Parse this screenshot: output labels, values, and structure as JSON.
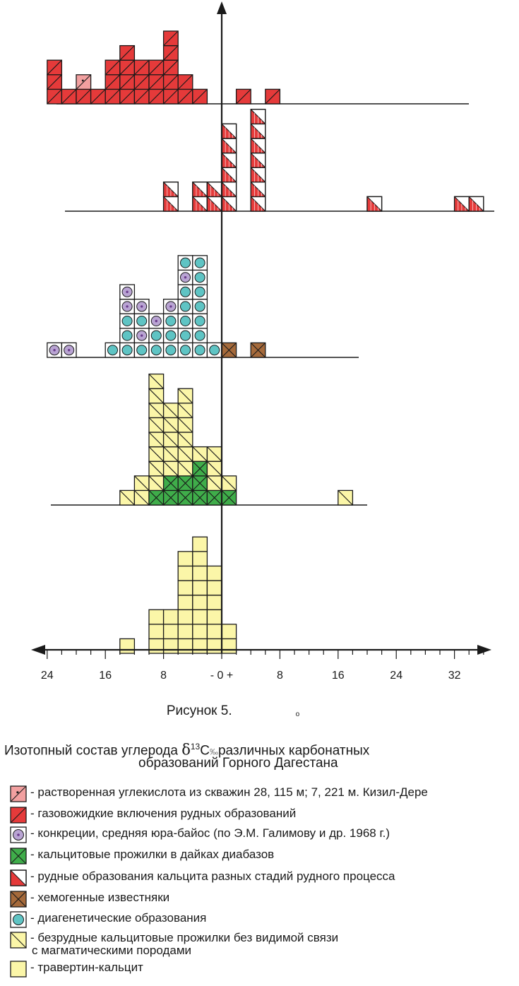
{
  "chart_data": {
    "type": "histogram",
    "x_axis": {
      "min": -24,
      "max": 36,
      "bin_width": 2,
      "ticks": [
        "24",
        "16",
        "8",
        "- 0 +",
        "8",
        "16",
        "24",
        "32"
      ],
      "arrows": "both"
    },
    "rows": [
      {
        "name": "row-1-gas-liquid-and-dissolved",
        "stacks": [
          {
            "x": -23,
            "cells": [
              "gas",
              "gas",
              "gas"
            ]
          },
          {
            "x": -21,
            "cells": [
              "gas"
            ]
          },
          {
            "x": -19,
            "cells": [
              "gas",
              "dissolved"
            ]
          },
          {
            "x": -17,
            "cells": [
              "gas"
            ]
          },
          {
            "x": -15,
            "cells": [
              "gas",
              "gas",
              "gas"
            ]
          },
          {
            "x": -13,
            "cells": [
              "gas",
              "gas",
              "gas",
              "gas"
            ]
          },
          {
            "x": -11,
            "cells": [
              "gas",
              "gas",
              "gas"
            ]
          },
          {
            "x": -9,
            "cells": [
              "gas",
              "gas",
              "gas"
            ]
          },
          {
            "x": -7,
            "cells": [
              "gas",
              "gas",
              "gas",
              "gas",
              "gas"
            ]
          },
          {
            "x": -5,
            "cells": [
              "gas",
              "gas"
            ]
          },
          {
            "x": -3,
            "cells": [
              "gas"
            ]
          },
          {
            "x": 3,
            "cells": [
              "gas"
            ]
          },
          {
            "x": 7,
            "cells": [
              "gas"
            ]
          }
        ]
      },
      {
        "name": "row-2-ore-calcite",
        "stacks": [
          {
            "x": -7,
            "cells": [
              "ore",
              "ore"
            ]
          },
          {
            "x": -3,
            "cells": [
              "ore",
              "ore"
            ]
          },
          {
            "x": -1,
            "cells": [
              "ore",
              "ore"
            ]
          },
          {
            "x": 1,
            "cells": [
              "ore",
              "ore",
              "ore",
              "ore",
              "ore",
              "ore"
            ]
          },
          {
            "x": 5,
            "cells": [
              "ore",
              "ore",
              "ore",
              "ore",
              "ore",
              "ore",
              "ore"
            ]
          },
          {
            "x": 21,
            "cells": [
              "ore"
            ]
          },
          {
            "x": 33,
            "cells": [
              "ore"
            ]
          },
          {
            "x": 35,
            "cells": [
              "ore"
            ]
          }
        ]
      },
      {
        "name": "row-3-concretions-diagenetic-chemogenic",
        "stacks": [
          {
            "x": -23,
            "cells": [
              "concretion"
            ]
          },
          {
            "x": -21,
            "cells": [
              "concretion"
            ]
          },
          {
            "x": -15,
            "cells": [
              "diagenetic"
            ]
          },
          {
            "x": -13,
            "cells": [
              "diagenetic",
              "diagenetic",
              "diagenetic",
              "concretion",
              "concretion"
            ]
          },
          {
            "x": -11,
            "cells": [
              "diagenetic",
              "concretion",
              "diagenetic",
              "concretion"
            ]
          },
          {
            "x": -9,
            "cells": [
              "diagenetic",
              "diagenetic",
              "concretion"
            ]
          },
          {
            "x": -7,
            "cells": [
              "diagenetic",
              "diagenetic",
              "diagenetic",
              "concretion"
            ]
          },
          {
            "x": -5,
            "cells": [
              "diagenetic",
              "diagenetic",
              "diagenetic",
              "diagenetic",
              "diagenetic",
              "concretion",
              "diagenetic"
            ]
          },
          {
            "x": -3,
            "cells": [
              "diagenetic",
              "diagenetic",
              "diagenetic",
              "diagenetic",
              "diagenetic",
              "diagenetic",
              "diagenetic"
            ]
          },
          {
            "x": -1,
            "cells": [
              "diagenetic"
            ]
          },
          {
            "x": 1,
            "cells": [
              "chemogenic"
            ]
          },
          {
            "x": 5,
            "cells": [
              "chemogenic"
            ]
          }
        ]
      },
      {
        "name": "row-4-calcite-veins",
        "stacks": [
          {
            "x": -13,
            "cells": [
              "barren"
            ]
          },
          {
            "x": -11,
            "cells": [
              "barren",
              "barren"
            ]
          },
          {
            "x": -9,
            "cells": [
              "diabase",
              "barren",
              "barren",
              "barren",
              "barren",
              "barren",
              "barren",
              "barren",
              "barren"
            ]
          },
          {
            "x": -7,
            "cells": [
              "diabase",
              "diabase",
              "barren",
              "barren",
              "barren",
              "barren",
              "barren"
            ]
          },
          {
            "x": -5,
            "cells": [
              "diabase",
              "diabase",
              "barren",
              "barren",
              "barren",
              "barren",
              "barren",
              "barren"
            ]
          },
          {
            "x": -3,
            "cells": [
              "diabase",
              "diabase",
              "diabase",
              "barren"
            ]
          },
          {
            "x": -1,
            "cells": [
              "diabase",
              "barren",
              "barren",
              "barren"
            ]
          },
          {
            "x": 1,
            "cells": [
              "diabase",
              "barren"
            ]
          },
          {
            "x": 17,
            "cells": [
              "barren"
            ]
          }
        ]
      },
      {
        "name": "row-5-travertine",
        "stacks": [
          {
            "x": -13,
            "cells": [
              "travertine"
            ]
          },
          {
            "x": -9,
            "cells": [
              "travertine",
              "travertine",
              "travertine"
            ]
          },
          {
            "x": -7,
            "cells": [
              "travertine",
              "travertine",
              "travertine"
            ]
          },
          {
            "x": -5,
            "cells": [
              "travertine",
              "travertine",
              "travertine",
              "travertine",
              "travertine",
              "travertine",
              "travertine"
            ]
          },
          {
            "x": -3,
            "cells": [
              "travertine",
              "travertine",
              "travertine",
              "travertine",
              "travertine",
              "travertine",
              "travertine",
              "travertine"
            ]
          },
          {
            "x": -1,
            "cells": [
              "travertine",
              "travertine",
              "travertine",
              "travertine",
              "travertine",
              "travertine"
            ]
          },
          {
            "x": 1,
            "cells": [
              "travertine",
              "travertine"
            ]
          }
        ]
      }
    ],
    "colors": {
      "dissolved": "#f2a0a0",
      "gas": "#e53a3a",
      "concretion": "#b9a4d3",
      "concretion_dot": "#6a3b8c",
      "diabase": "#3fad4a",
      "ore": "#e53a3a",
      "chemogenic": "#a56a3b",
      "diagenetic": "#5fc4c4",
      "barren": "#fbf6a8",
      "travertine": "#fbf6a8",
      "line": "#1a1a1a"
    }
  },
  "caption": "Рисунок 5.",
  "caption_mark": "о",
  "title": {
    "line1_prefix": "Изотопный состав углерода",
    "delta": "δ",
    "sup": "13",
    "c": "C",
    "permil": "‰",
    "line1_suffix": "различных карбонатных",
    "line2": "образований Горного Дагестана"
  },
  "legend": [
    {
      "key": "dissolved",
      "label": "- растворенная углекислота из скважин 28, 115 м; 7, 221 м. Кизил-Дере"
    },
    {
      "key": "gas",
      "label": "- газовожидкие включения рудных образований"
    },
    {
      "key": "concretion",
      "label": "- конкреции, средняя юра-байос (по Э.М. Галимову и др. 1968 г.)"
    },
    {
      "key": "diabase",
      "label": "- кальцитовые прожилки в дайках диабазов"
    },
    {
      "key": "ore",
      "label": "- рудные образования кальцита разных стадий рудного процесса"
    },
    {
      "key": "chemogenic",
      "label": "- хемогенные известняки"
    },
    {
      "key": "diagenetic",
      "label": "- диагенетические образования"
    },
    {
      "key": "barren",
      "label": "- безрудные кальцитовые прожилки без видимой связи",
      "label2": "с магматическими породами"
    },
    {
      "key": "travertine",
      "label": "- травертин-кальцит"
    }
  ]
}
